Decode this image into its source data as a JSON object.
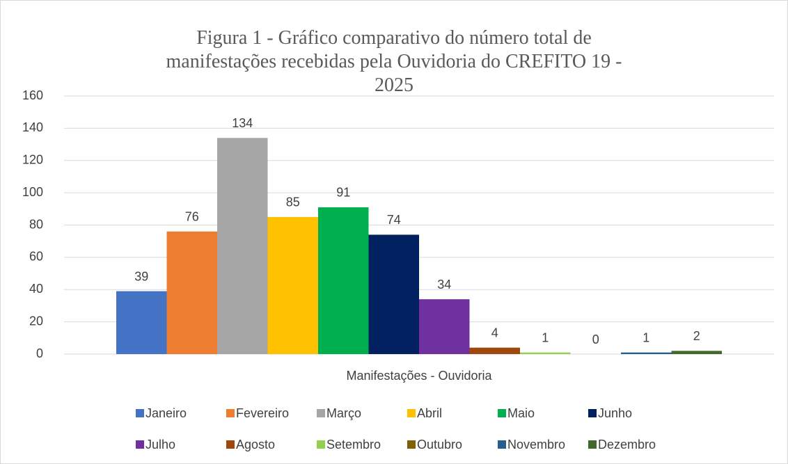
{
  "chart_data": {
    "type": "bar",
    "title": "Figura 1 - Gráfico comparativo do número total de manifestações recebidas pela Ouvidoria do CREFITO 19 - 2025",
    "categories": [
      "Manifestações - Ouvidoria"
    ],
    "series": [
      {
        "name": "Janeiro",
        "color": "#4472c4",
        "values": [
          39
        ]
      },
      {
        "name": "Fevereiro",
        "color": "#ed7d31",
        "values": [
          76
        ]
      },
      {
        "name": "Março",
        "color": "#a5a5a5",
        "values": [
          134
        ]
      },
      {
        "name": "Abril",
        "color": "#ffc000",
        "values": [
          85
        ]
      },
      {
        "name": "Maio",
        "color": "#00b050",
        "values": [
          91
        ]
      },
      {
        "name": "Junho",
        "color": "#002060",
        "values": [
          74
        ]
      },
      {
        "name": "Julho",
        "color": "#7030a0",
        "values": [
          34
        ]
      },
      {
        "name": "Agosto",
        "color": "#9e480e",
        "values": [
          4
        ]
      },
      {
        "name": "Setembro",
        "color": "#92d050",
        "values": [
          1
        ]
      },
      {
        "name": "Outubro",
        "color": "#806000",
        "values": [
          0
        ]
      },
      {
        "name": "Novembro",
        "color": "#255e91",
        "values": [
          1
        ]
      },
      {
        "name": "Dezembro",
        "color": "#43682b",
        "values": [
          2
        ]
      }
    ],
    "ylim": [
      0,
      160
    ],
    "yticks": [
      0,
      20,
      40,
      60,
      80,
      100,
      120,
      140,
      160
    ],
    "grid": true,
    "legend": "bottom"
  }
}
